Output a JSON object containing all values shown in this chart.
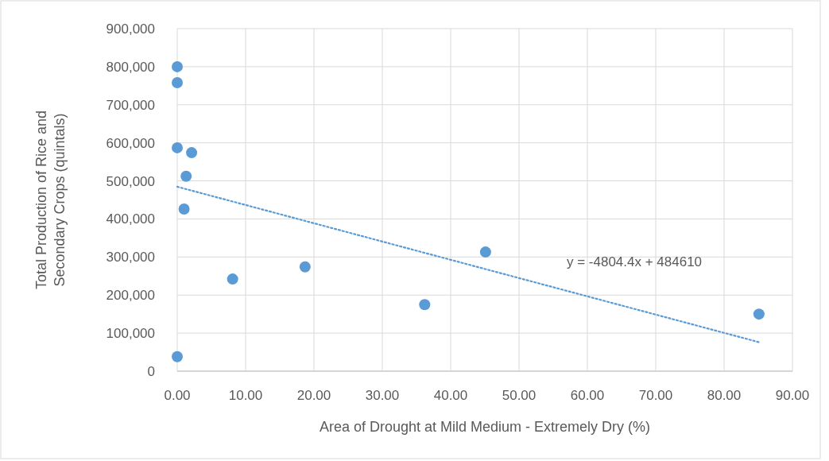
{
  "chart_data": {
    "type": "scatter",
    "xlabel": "Area of Drought at Mild Medium - Extremely Dry (%)",
    "ylabel": "Total Production of Rice and Secondary Crops (quintals)",
    "xlim": [
      0,
      90
    ],
    "xticks": [
      {
        "value": 0,
        "label": "0.00"
      },
      {
        "value": 10,
        "label": "10.00"
      },
      {
        "value": 20,
        "label": "20.00"
      },
      {
        "value": 30,
        "label": "30.00"
      },
      {
        "value": 40,
        "label": "40.00"
      },
      {
        "value": 50,
        "label": "50.00"
      },
      {
        "value": 60,
        "label": "60.00"
      },
      {
        "value": 70,
        "label": "70.00"
      },
      {
        "value": 80,
        "label": "80.00"
      },
      {
        "value": 90,
        "label": "90.00"
      }
    ],
    "ylim": [
      0,
      900000
    ],
    "yticks": [
      {
        "value": 0,
        "label": "0"
      },
      {
        "value": 100000,
        "label": "100,000"
      },
      {
        "value": 200000,
        "label": "200,000"
      },
      {
        "value": 300000,
        "label": "300,000"
      },
      {
        "value": 400000,
        "label": "400,000"
      },
      {
        "value": 500000,
        "label": "500,000"
      },
      {
        "value": 600000,
        "label": "600,000"
      },
      {
        "value": 700000,
        "label": "700,000"
      },
      {
        "value": 800000,
        "label": "800,000"
      },
      {
        "value": 900000,
        "label": "900,000"
      }
    ],
    "grid": true,
    "marker": "circle",
    "series": [
      {
        "color": "#5b9bd5",
        "x": [
          0,
          0,
          0,
          2.1,
          1.3,
          1.0,
          8.1,
          18.7,
          36.2,
          45.1,
          85.1,
          0
        ],
        "values": [
          800000,
          758000,
          587000,
          574000,
          512000,
          426000,
          242000,
          274000,
          175000,
          313000,
          150000,
          38000
        ]
      },
      {
        "type": "line",
        "color": "#5b9bd5",
        "line_style": "dotted",
        "marker": "none",
        "x": [
          0,
          85.1
        ],
        "values": [
          484600,
          76200
        ]
      }
    ],
    "annotations": [
      "y = -4804.4x + 484610"
    ]
  }
}
